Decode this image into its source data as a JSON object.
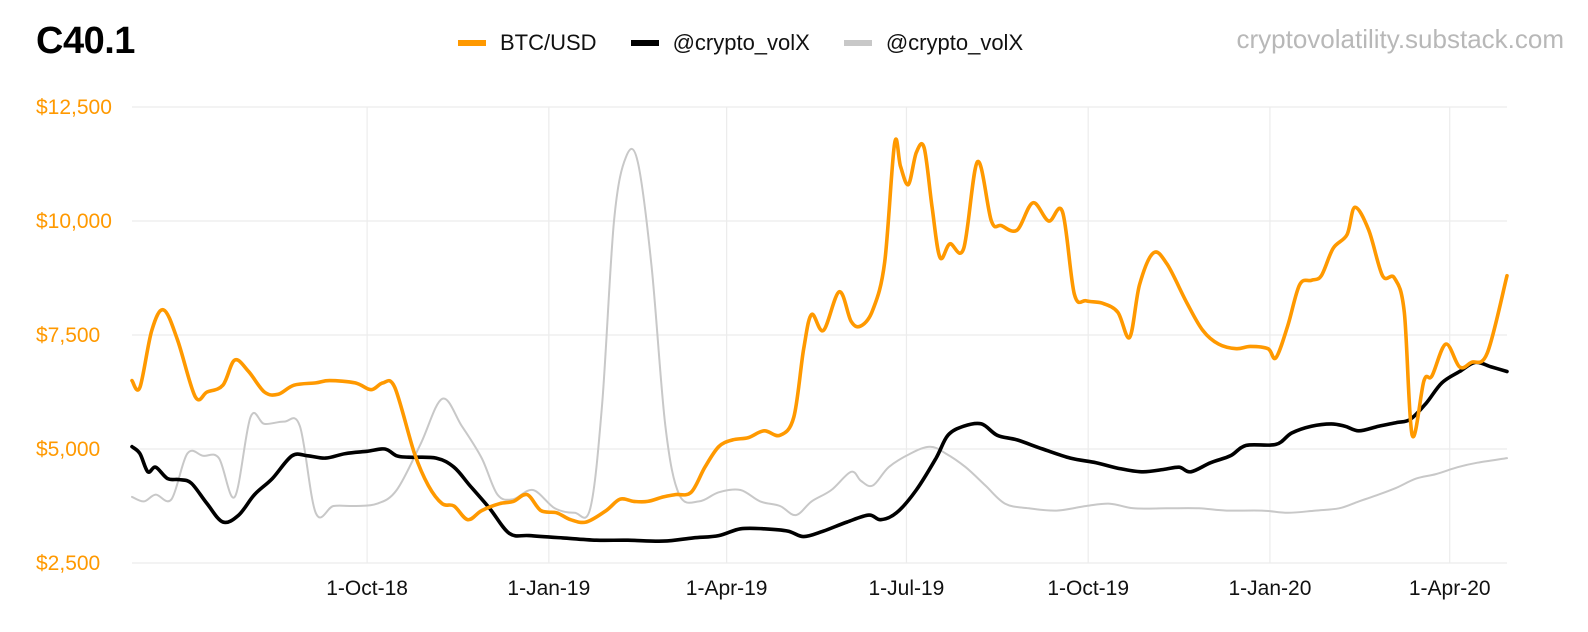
{
  "header": {
    "title": "C40.1",
    "source": "cryptovolatility.substack.com"
  },
  "colors": {
    "btc": "#ff9900",
    "volx_black": "#000000",
    "volx_grey": "#c8c8c8",
    "grid": "#ececec"
  },
  "chart_data": {
    "type": "line",
    "ylim": [
      2500,
      12500
    ],
    "xlim": [
      "2018-06-04",
      "2020-04-30"
    ],
    "y_ticks": [
      "$2,500",
      "$5,000",
      "$7,500",
      "$10,000",
      "$12,500"
    ],
    "y_tick_values": [
      2500,
      5000,
      7500,
      10000,
      12500
    ],
    "x_ticks": [
      "1-Oct-18",
      "1-Jan-19",
      "1-Apr-19",
      "1-Jul-19",
      "1-Oct-19",
      "1-Jan-20",
      "1-Apr-20"
    ],
    "x_tick_dates": [
      "2018-10-01",
      "2019-01-01",
      "2019-04-01",
      "2019-07-01",
      "2019-10-01",
      "2020-01-01",
      "2020-04-01"
    ],
    "grid": true,
    "legend": "top-center",
    "series": [
      {
        "name": "BTC/USD",
        "color": "#ff9900",
        "points": [
          [
            "2018-06-04",
            6500
          ],
          [
            "2018-06-08",
            6350
          ],
          [
            "2018-06-14",
            7600
          ],
          [
            "2018-06-20",
            8050
          ],
          [
            "2018-06-27",
            7400
          ],
          [
            "2018-07-06",
            6150
          ],
          [
            "2018-07-12",
            6250
          ],
          [
            "2018-07-20",
            6400
          ],
          [
            "2018-07-26",
            6950
          ],
          [
            "2018-08-02",
            6700
          ],
          [
            "2018-08-10",
            6250
          ],
          [
            "2018-08-17",
            6200
          ],
          [
            "2018-08-25",
            6400
          ],
          [
            "2018-09-05",
            6450
          ],
          [
            "2018-09-12",
            6500
          ],
          [
            "2018-09-25",
            6450
          ],
          [
            "2018-10-03",
            6300
          ],
          [
            "2018-10-09",
            6450
          ],
          [
            "2018-10-15",
            6350
          ],
          [
            "2018-10-25",
            4900
          ],
          [
            "2018-11-01",
            4200
          ],
          [
            "2018-11-08",
            3800
          ],
          [
            "2018-11-14",
            3750
          ],
          [
            "2018-11-21",
            3450
          ],
          [
            "2018-11-28",
            3650
          ],
          [
            "2018-12-07",
            3800
          ],
          [
            "2018-12-14",
            3850
          ],
          [
            "2018-12-21",
            4000
          ],
          [
            "2018-12-28",
            3650
          ],
          [
            "2019-01-05",
            3600
          ],
          [
            "2019-01-12",
            3450
          ],
          [
            "2019-01-20",
            3400
          ],
          [
            "2019-01-30",
            3650
          ],
          [
            "2019-02-06",
            3900
          ],
          [
            "2019-02-13",
            3850
          ],
          [
            "2019-02-20",
            3850
          ],
          [
            "2019-02-28",
            3950
          ],
          [
            "2019-03-06",
            4000
          ],
          [
            "2019-03-14",
            4050
          ],
          [
            "2019-03-21",
            4600
          ],
          [
            "2019-03-28",
            5050
          ],
          [
            "2019-04-04",
            5200
          ],
          [
            "2019-04-12",
            5250
          ],
          [
            "2019-04-20",
            5400
          ],
          [
            "2019-04-28",
            5300
          ],
          [
            "2019-05-05",
            5700
          ],
          [
            "2019-05-10",
            7200
          ],
          [
            "2019-05-14",
            7950
          ],
          [
            "2019-05-20",
            7600
          ],
          [
            "2019-05-28",
            8450
          ],
          [
            "2019-06-03",
            7800
          ],
          [
            "2019-06-08",
            7700
          ],
          [
            "2019-06-14",
            8050
          ],
          [
            "2019-06-20",
            9100
          ],
          [
            "2019-06-25",
            11700
          ],
          [
            "2019-06-28",
            11200
          ],
          [
            "2019-07-02",
            10800
          ],
          [
            "2019-07-06",
            11500
          ],
          [
            "2019-07-10",
            11600
          ],
          [
            "2019-07-14",
            10300
          ],
          [
            "2019-07-18",
            9200
          ],
          [
            "2019-07-23",
            9500
          ],
          [
            "2019-07-30",
            9400
          ],
          [
            "2019-08-06",
            11300
          ],
          [
            "2019-08-13",
            10000
          ],
          [
            "2019-08-18",
            9900
          ],
          [
            "2019-08-26",
            9800
          ],
          [
            "2019-09-03",
            10400
          ],
          [
            "2019-09-11",
            10000
          ],
          [
            "2019-09-18",
            10200
          ],
          [
            "2019-09-24",
            8400
          ],
          [
            "2019-09-30",
            8250
          ],
          [
            "2019-10-08",
            8200
          ],
          [
            "2019-10-16",
            8000
          ],
          [
            "2019-10-22",
            7450
          ],
          [
            "2019-10-27",
            8600
          ],
          [
            "2019-11-03",
            9300
          ],
          [
            "2019-11-10",
            9050
          ],
          [
            "2019-11-20",
            8200
          ],
          [
            "2019-11-28",
            7600
          ],
          [
            "2019-12-06",
            7300
          ],
          [
            "2019-12-15",
            7200
          ],
          [
            "2019-12-22",
            7250
          ],
          [
            "2019-12-31",
            7200
          ],
          [
            "2020-01-04",
            7000
          ],
          [
            "2020-01-10",
            7700
          ],
          [
            "2020-01-16",
            8600
          ],
          [
            "2020-01-22",
            8700
          ],
          [
            "2020-01-27",
            8800
          ],
          [
            "2020-02-02",
            9400
          ],
          [
            "2020-02-09",
            9700
          ],
          [
            "2020-02-13",
            10300
          ],
          [
            "2020-02-20",
            9800
          ],
          [
            "2020-02-27",
            8800
          ],
          [
            "2020-03-04",
            8750
          ],
          [
            "2020-03-09",
            8000
          ],
          [
            "2020-03-13",
            5300
          ],
          [
            "2020-03-19",
            6500
          ],
          [
            "2020-03-23",
            6600
          ],
          [
            "2020-03-30",
            7300
          ],
          [
            "2020-04-06",
            6800
          ],
          [
            "2020-04-12",
            6900
          ],
          [
            "2020-04-20",
            7100
          ],
          [
            "2020-04-30",
            8800
          ]
        ]
      },
      {
        "name": "@crypto_volX",
        "color": "#000000",
        "points": [
          [
            "2018-06-04",
            5050
          ],
          [
            "2018-06-08",
            4900
          ],
          [
            "2018-06-12",
            4500
          ],
          [
            "2018-06-16",
            4600
          ],
          [
            "2018-06-22",
            4350
          ],
          [
            "2018-06-28",
            4330
          ],
          [
            "2018-07-04",
            4250
          ],
          [
            "2018-07-12",
            3800
          ],
          [
            "2018-07-20",
            3400
          ],
          [
            "2018-07-28",
            3550
          ],
          [
            "2018-08-05",
            4000
          ],
          [
            "2018-08-14",
            4350
          ],
          [
            "2018-08-24",
            4850
          ],
          [
            "2018-09-01",
            4850
          ],
          [
            "2018-09-10",
            4800
          ],
          [
            "2018-09-20",
            4900
          ],
          [
            "2018-10-01",
            4950
          ],
          [
            "2018-10-10",
            5000
          ],
          [
            "2018-10-16",
            4850
          ],
          [
            "2018-10-22",
            4820
          ],
          [
            "2018-11-05",
            4800
          ],
          [
            "2018-11-14",
            4600
          ],
          [
            "2018-11-22",
            4200
          ],
          [
            "2018-12-02",
            3700
          ],
          [
            "2018-12-12",
            3150
          ],
          [
            "2018-12-22",
            3100
          ],
          [
            "2019-01-08",
            3050
          ],
          [
            "2019-01-25",
            3000
          ],
          [
            "2019-02-10",
            3000
          ],
          [
            "2019-02-28",
            2980
          ],
          [
            "2019-03-15",
            3050
          ],
          [
            "2019-03-28",
            3100
          ],
          [
            "2019-04-08",
            3250
          ],
          [
            "2019-04-20",
            3250
          ],
          [
            "2019-05-02",
            3200
          ],
          [
            "2019-05-10",
            3080
          ],
          [
            "2019-05-20",
            3200
          ],
          [
            "2019-06-01",
            3400
          ],
          [
            "2019-06-12",
            3550
          ],
          [
            "2019-06-18",
            3450
          ],
          [
            "2019-06-26",
            3600
          ],
          [
            "2019-07-06",
            4100
          ],
          [
            "2019-07-16",
            4800
          ],
          [
            "2019-07-22",
            5300
          ],
          [
            "2019-07-30",
            5500
          ],
          [
            "2019-08-08",
            5550
          ],
          [
            "2019-08-16",
            5300
          ],
          [
            "2019-08-26",
            5200
          ],
          [
            "2019-09-08",
            5000
          ],
          [
            "2019-09-22",
            4800
          ],
          [
            "2019-10-05",
            4700
          ],
          [
            "2019-10-16",
            4580
          ],
          [
            "2019-10-28",
            4500
          ],
          [
            "2019-11-08",
            4550
          ],
          [
            "2019-11-16",
            4600
          ],
          [
            "2019-11-22",
            4500
          ],
          [
            "2019-12-02",
            4700
          ],
          [
            "2019-12-12",
            4850
          ],
          [
            "2019-12-20",
            5080
          ],
          [
            "2020-01-04",
            5100
          ],
          [
            "2020-01-12",
            5350
          ],
          [
            "2020-01-22",
            5500
          ],
          [
            "2020-02-01",
            5550
          ],
          [
            "2020-02-08",
            5500
          ],
          [
            "2020-02-15",
            5400
          ],
          [
            "2020-02-25",
            5500
          ],
          [
            "2020-03-05",
            5580
          ],
          [
            "2020-03-12",
            5650
          ],
          [
            "2020-03-20",
            6000
          ],
          [
            "2020-03-28",
            6450
          ],
          [
            "2020-04-06",
            6700
          ],
          [
            "2020-04-14",
            6900
          ],
          [
            "2020-04-22",
            6800
          ],
          [
            "2020-04-30",
            6700
          ]
        ]
      },
      {
        "name": "@crypto_volX",
        "color": "#c8c8c8",
        "points": [
          [
            "2018-06-04",
            3950
          ],
          [
            "2018-06-10",
            3850
          ],
          [
            "2018-06-16",
            4000
          ],
          [
            "2018-06-24",
            3900
          ],
          [
            "2018-07-02",
            4900
          ],
          [
            "2018-07-10",
            4850
          ],
          [
            "2018-07-18",
            4800
          ],
          [
            "2018-07-26",
            3950
          ],
          [
            "2018-08-03",
            5700
          ],
          [
            "2018-08-10",
            5550
          ],
          [
            "2018-08-20",
            5600
          ],
          [
            "2018-08-28",
            5500
          ],
          [
            "2018-09-05",
            3600
          ],
          [
            "2018-09-14",
            3750
          ],
          [
            "2018-09-25",
            3750
          ],
          [
            "2018-10-06",
            3800
          ],
          [
            "2018-10-16",
            4100
          ],
          [
            "2018-10-28",
            5100
          ],
          [
            "2018-11-08",
            6100
          ],
          [
            "2018-11-18",
            5500
          ],
          [
            "2018-11-28",
            4800
          ],
          [
            "2018-12-06",
            4000
          ],
          [
            "2018-12-14",
            3900
          ],
          [
            "2018-12-24",
            4100
          ],
          [
            "2019-01-04",
            3700
          ],
          [
            "2019-01-14",
            3600
          ],
          [
            "2019-01-22",
            3700
          ],
          [
            "2019-01-28",
            6000
          ],
          [
            "2019-02-03",
            10000
          ],
          [
            "2019-02-09",
            11400
          ],
          [
            "2019-02-15",
            11300
          ],
          [
            "2019-02-22",
            9000
          ],
          [
            "2019-03-01",
            5500
          ],
          [
            "2019-03-08",
            4000
          ],
          [
            "2019-03-18",
            3850
          ],
          [
            "2019-03-28",
            4050
          ],
          [
            "2019-04-08",
            4100
          ],
          [
            "2019-04-18",
            3850
          ],
          [
            "2019-04-28",
            3750
          ],
          [
            "2019-05-06",
            3550
          ],
          [
            "2019-05-14",
            3850
          ],
          [
            "2019-05-24",
            4100
          ],
          [
            "2019-06-03",
            4500
          ],
          [
            "2019-06-08",
            4300
          ],
          [
            "2019-06-14",
            4200
          ],
          [
            "2019-06-22",
            4600
          ],
          [
            "2019-07-03",
            4900
          ],
          [
            "2019-07-13",
            5050
          ],
          [
            "2019-07-21",
            4900
          ],
          [
            "2019-07-31",
            4600
          ],
          [
            "2019-08-10",
            4200
          ],
          [
            "2019-08-20",
            3800
          ],
          [
            "2019-09-01",
            3700
          ],
          [
            "2019-09-15",
            3650
          ],
          [
            "2019-09-30",
            3750
          ],
          [
            "2019-10-12",
            3800
          ],
          [
            "2019-10-24",
            3700
          ],
          [
            "2019-11-10",
            3700
          ],
          [
            "2019-11-26",
            3700
          ],
          [
            "2019-12-10",
            3650
          ],
          [
            "2019-12-28",
            3650
          ],
          [
            "2020-01-10",
            3600
          ],
          [
            "2020-01-24",
            3650
          ],
          [
            "2020-02-05",
            3700
          ],
          [
            "2020-02-15",
            3850
          ],
          [
            "2020-02-25",
            4000
          ],
          [
            "2020-03-05",
            4150
          ],
          [
            "2020-03-15",
            4350
          ],
          [
            "2020-03-25",
            4450
          ],
          [
            "2020-04-05",
            4600
          ],
          [
            "2020-04-15",
            4700
          ],
          [
            "2020-04-30",
            4800
          ]
        ]
      }
    ]
  }
}
